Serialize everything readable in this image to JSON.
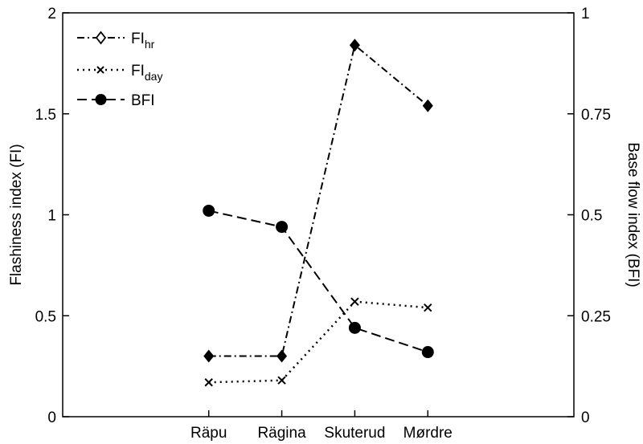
{
  "chart_data": {
    "type": "line",
    "categories": [
      "Räpu",
      "Rägina",
      "Skuterud",
      "Mørdre"
    ],
    "ylabel_left": "Flashiness index (FI)",
    "ylabel_right": "Base flow index (BFI)",
    "ylim_left": [
      0,
      2
    ],
    "ylim_right": [
      0,
      1
    ],
    "yticks_left": [
      "0",
      "0.5",
      "1",
      "1.5",
      "2"
    ],
    "yticks_right": [
      "0",
      "0.25",
      "0.5",
      "0.75",
      "1"
    ],
    "grid": false,
    "legend_position": "top-left",
    "series": [
      {
        "name": "FIhr",
        "legend_main": "FI",
        "legend_sub": "hr",
        "axis": "left",
        "line_style": "dash-dot",
        "marker": "diamond",
        "values": [
          0.3,
          0.3,
          1.84,
          1.54
        ]
      },
      {
        "name": "FIday",
        "legend_main": "FI",
        "legend_sub": "day",
        "axis": "left",
        "line_style": "dotted",
        "marker": "x",
        "values": [
          0.17,
          0.18,
          0.57,
          0.54
        ]
      },
      {
        "name": "BFI",
        "legend_main": "BFI",
        "legend_sub": "",
        "axis": "right",
        "line_style": "dashed",
        "marker": "circle",
        "values": [
          0.51,
          0.47,
          0.22,
          0.16
        ]
      }
    ]
  }
}
